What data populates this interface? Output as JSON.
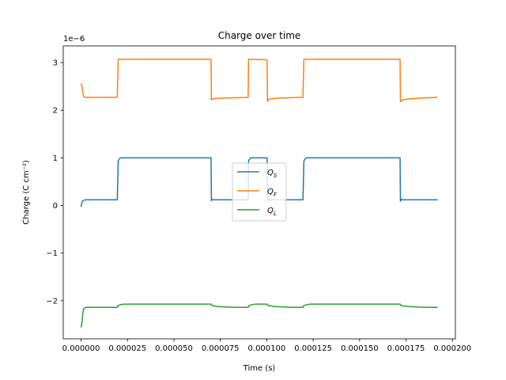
{
  "chart_data": {
    "type": "line",
    "title": "Charge over time",
    "xlabel": "Time (s)",
    "ylabel": "Charge (C cm⁻²)",
    "y_offset_text": "1e−6",
    "xlim": [
      -9.6e-06,
      0.0002016
    ],
    "ylim": [
      -2.8e-06,
      3.35e-06
    ],
    "x_ticks": [
      {
        "value": 0.0,
        "label": "0.000000"
      },
      {
        "value": 2.5e-05,
        "label": "0.000025"
      },
      {
        "value": 5e-05,
        "label": "0.000050"
      },
      {
        "value": 7.5e-05,
        "label": "0.000075"
      },
      {
        "value": 0.0001,
        "label": "0.000100"
      },
      {
        "value": 0.000125,
        "label": "0.000125"
      },
      {
        "value": 0.00015,
        "label": "0.000150"
      },
      {
        "value": 0.000175,
        "label": "0.000175"
      },
      {
        "value": 0.0002,
        "label": "0.000200"
      }
    ],
    "y_ticks": [
      {
        "value": -2e-06,
        "label": "−2"
      },
      {
        "value": -1e-06,
        "label": "−1"
      },
      {
        "value": 0,
        "label": "0"
      },
      {
        "value": 1e-06,
        "label": "1"
      },
      {
        "value": 2e-06,
        "label": "2"
      },
      {
        "value": 3e-06,
        "label": "3"
      }
    ],
    "grid": false,
    "legend_position": "center",
    "series": [
      {
        "name": "Q",
        "subscript": "S",
        "color": "#1f77b4",
        "points": [
          [
            0,
            -3e-08
          ],
          [
            3e-07,
            4e-08
          ],
          [
            8e-07,
            9e-08
          ],
          [
            1.5e-06,
            1.1e-07
          ],
          [
            2.5e-06,
            1.2e-07
          ],
          [
            1.95e-05,
            1.2e-07
          ],
          [
            2e-05,
            9.3e-07
          ],
          [
            2.05e-05,
            9.7e-07
          ],
          [
            2.1e-05,
            9.9e-07
          ],
          [
            2.15e-05,
            1e-06
          ],
          [
            7e-05,
            1e-06
          ],
          [
            7.02e-05,
            1e-07
          ],
          [
            7.05e-05,
            1.3e-07
          ],
          [
            7.1e-05,
            1.2e-07
          ],
          [
            9e-05,
            1.2e-07
          ],
          [
            9.02e-05,
            9.3e-07
          ],
          [
            9.1e-05,
            9.9e-07
          ],
          [
            9.15e-05,
            1e-06
          ],
          [
            0.0001002,
            1e-06
          ],
          [
            0.0001004,
            1e-07
          ],
          [
            0.000101,
            1.3e-07
          ],
          [
            0.0001015,
            1.2e-07
          ],
          [
            0.0001195,
            1.2e-07
          ],
          [
            0.00012,
            9.3e-07
          ],
          [
            0.0001205,
            9.7e-07
          ],
          [
            0.000121,
            9.9e-07
          ],
          [
            0.0001215,
            1e-06
          ],
          [
            0.0001718,
            1e-06
          ],
          [
            0.000172,
            9e-08
          ],
          [
            0.0001725,
            1.3e-07
          ],
          [
            0.000173,
            1.2e-07
          ],
          [
            0.000192,
            1.2e-07
          ]
        ]
      },
      {
        "name": "Q",
        "subscript": "F",
        "color": "#ff7f0e",
        "points": [
          [
            0,
            2.56e-06
          ],
          [
            5e-07,
            2.5e-06
          ],
          [
            1e-06,
            2.35e-06
          ],
          [
            1.5e-06,
            2.28e-06
          ],
          [
            2.5e-06,
            2.27e-06
          ],
          [
            1.95e-05,
            2.27e-06
          ],
          [
            2e-05,
            3.07e-06
          ],
          [
            7e-05,
            3.07e-06
          ],
          [
            7.02e-05,
            2.22e-06
          ],
          [
            7.1e-05,
            2.24e-06
          ],
          [
            7.4e-05,
            2.25e-06
          ],
          [
            8e-05,
            2.26e-06
          ],
          [
            9e-05,
            2.27e-06
          ],
          [
            9.02e-05,
            3.07e-06
          ],
          [
            0.0001002,
            3.06e-06
          ],
          [
            0.0001004,
            2.18e-06
          ],
          [
            0.000101,
            2.23e-06
          ],
          [
            0.000105,
            2.25e-06
          ],
          [
            0.00011,
            2.26e-06
          ],
          [
            0.0001195,
            2.27e-06
          ],
          [
            0.00012,
            3.07e-06
          ],
          [
            0.0001718,
            3.07e-06
          ],
          [
            0.000172,
            2.18e-06
          ],
          [
            0.000173,
            2.22e-06
          ],
          [
            0.000177,
            2.24e-06
          ],
          [
            0.000185,
            2.26e-06
          ],
          [
            0.000192,
            2.27e-06
          ]
        ]
      },
      {
        "name": "Q",
        "subscript": "L",
        "color": "#2ca02c",
        "points": [
          [
            0,
            -2.56e-06
          ],
          [
            5e-07,
            -2.45e-06
          ],
          [
            1e-06,
            -2.25e-06
          ],
          [
            1.5e-06,
            -2.16e-06
          ],
          [
            2.5e-06,
            -2.14e-06
          ],
          [
            1.95e-05,
            -2.14e-06
          ],
          [
            2e-05,
            -2.1e-06
          ],
          [
            2.15e-05,
            -2.08e-06
          ],
          [
            2.4e-05,
            -2.07e-06
          ],
          [
            7e-05,
            -2.07e-06
          ],
          [
            7.05e-05,
            -2.1e-06
          ],
          [
            7.3e-05,
            -2.12e-06
          ],
          [
            7.8e-05,
            -2.13e-06
          ],
          [
            8.3e-05,
            -2.14e-06
          ],
          [
            9e-05,
            -2.14e-06
          ],
          [
            9.05e-05,
            -2.1e-06
          ],
          [
            9.25e-05,
            -2.08e-06
          ],
          [
            9.45e-05,
            -2.07e-06
          ],
          [
            0.0001002,
            -2.07e-06
          ],
          [
            0.0001006,
            -2.1e-06
          ],
          [
            0.000104,
            -2.12e-06
          ],
          [
            0.000109,
            -2.13e-06
          ],
          [
            0.000114,
            -2.14e-06
          ],
          [
            0.0001195,
            -2.14e-06
          ],
          [
            0.00012,
            -2.1e-06
          ],
          [
            0.000122,
            -2.08e-06
          ],
          [
            0.000124,
            -2.07e-06
          ],
          [
            0.0001718,
            -2.07e-06
          ],
          [
            0.0001722,
            -2.1e-06
          ],
          [
            0.000176,
            -2.12e-06
          ],
          [
            0.000181,
            -2.13e-06
          ],
          [
            0.000186,
            -2.14e-06
          ],
          [
            0.000192,
            -2.14e-06
          ]
        ]
      }
    ]
  }
}
